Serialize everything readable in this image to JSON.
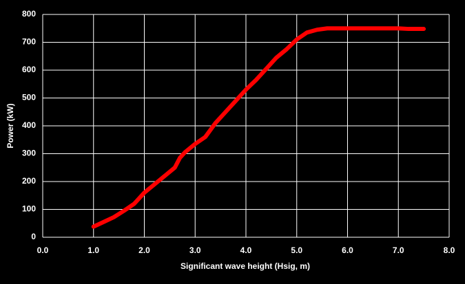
{
  "chart_data": {
    "type": "line",
    "x_label": "Significant wave height (Hsig, m)",
    "y_label": "Power (kW)",
    "x": [
      1.0,
      1.2,
      1.4,
      1.6,
      1.8,
      2.0,
      2.2,
      2.4,
      2.6,
      2.7,
      2.8,
      3.0,
      3.2,
      3.4,
      3.6,
      3.8,
      4.0,
      4.2,
      4.4,
      4.6,
      4.8,
      5.0,
      5.2,
      5.4,
      5.6,
      6.0,
      6.5,
      7.0,
      7.2,
      7.5
    ],
    "series": [
      {
        "name": "Power",
        "color": "#ff0000",
        "values": [
          38,
          55,
          72,
          95,
          120,
          160,
          190,
          220,
          250,
          285,
          305,
          335,
          360,
          410,
          450,
          490,
          530,
          565,
          605,
          645,
          675,
          710,
          735,
          745,
          750,
          750,
          750,
          750,
          748,
          748
        ]
      }
    ],
    "xlim": [
      0,
      8
    ],
    "ylim": [
      0,
      800
    ],
    "xticks": [
      {
        "value": 0,
        "label": "0.0"
      },
      {
        "value": 1,
        "label": "1.0"
      },
      {
        "value": 2,
        "label": "2.0"
      },
      {
        "value": 3,
        "label": "3.0"
      },
      {
        "value": 4,
        "label": "4.0"
      },
      {
        "value": 5,
        "label": "5.0"
      },
      {
        "value": 6,
        "label": "6.0"
      },
      {
        "value": 7,
        "label": "7.0"
      },
      {
        "value": 8,
        "label": "8.0"
      }
    ],
    "yticks": [
      0,
      100,
      200,
      300,
      400,
      500,
      600,
      700,
      800
    ],
    "grid": true
  }
}
